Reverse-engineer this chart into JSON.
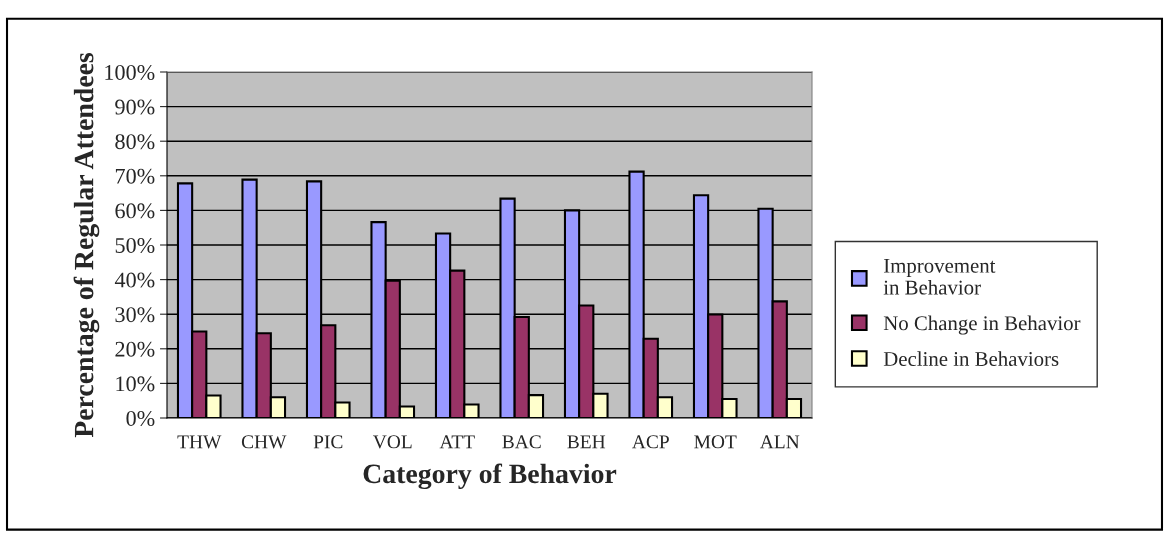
{
  "chart_data": {
    "type": "bar",
    "xlabel": "Category of Behavior",
    "ylabel": "Percentage of Regular Attendees",
    "categories": [
      "THW",
      "CHW",
      "PIC",
      "VOL",
      "ATT",
      "BAC",
      "BEH",
      "ACP",
      "MOT",
      "ALN"
    ],
    "series": [
      {
        "name": "Improvement in Behavior",
        "color": "#9999ff",
        "values": [
          67.8,
          68.9,
          68.4,
          56.6,
          53.3,
          63.4,
          60.0,
          71.2,
          64.4,
          60.5
        ]
      },
      {
        "name": "No Change in Behavior",
        "color": "#993366",
        "values": [
          25.0,
          24.5,
          26.8,
          39.7,
          42.6,
          29.2,
          32.5,
          22.9,
          29.9,
          33.7
        ]
      },
      {
        "name": "Decline in Behaviors",
        "color": "#ffffcc",
        "values": [
          6.5,
          6.0,
          4.5,
          3.3,
          3.9,
          6.6,
          7.0,
          6.0,
          5.5,
          5.5
        ]
      }
    ],
    "ylim": [
      0,
      100
    ],
    "yticks": [
      {
        "value": 0,
        "label": "0%"
      },
      {
        "value": 10,
        "label": "10%"
      },
      {
        "value": 20,
        "label": "20%"
      },
      {
        "value": 30,
        "label": "30%"
      },
      {
        "value": 40,
        "label": "40%"
      },
      {
        "value": 50,
        "label": "50%"
      },
      {
        "value": 60,
        "label": "60%"
      },
      {
        "value": 70,
        "label": "70%"
      },
      {
        "value": 80,
        "label": "80%"
      },
      {
        "value": 90,
        "label": "90%"
      },
      {
        "value": 100,
        "label": "100%"
      }
    ],
    "grid": "y",
    "legend": "right"
  }
}
